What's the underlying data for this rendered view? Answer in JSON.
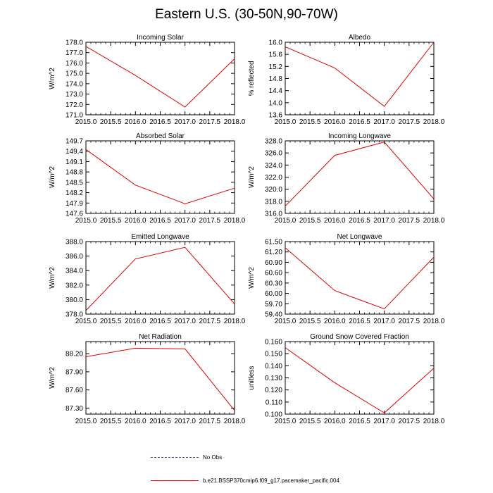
{
  "figure": {
    "title": "Eastern U.S. (30-50N,90-70W)"
  },
  "legend": {
    "obs_label": "No Obs",
    "model_label": "b.e21.BSSP370cmip6.f09_g17.pacemaker_pacific.004",
    "obs_color": "#4a4a9a",
    "model_color": "#e00000"
  },
  "chart_data": [
    {
      "type": "line",
      "title": "Incoming Solar",
      "ylabel": "W/m^2",
      "x": [
        2015,
        2016,
        2017,
        2018
      ],
      "values": [
        177.6,
        174.8,
        171.75,
        176.4
      ],
      "ylim": [
        171.0,
        178.0
      ],
      "yticks": [
        "171.0",
        "172.0",
        "173.0",
        "174.0",
        "175.0",
        "176.0",
        "177.0",
        "178.0"
      ],
      "xlim": [
        2015,
        2018
      ],
      "xticks": [
        "2015.0",
        "2015.5",
        "2016.0",
        "2016.5",
        "2017.0",
        "2017.5",
        "2018.0"
      ]
    },
    {
      "type": "line",
      "title": "Albedo",
      "ylabel": "% reflected",
      "x": [
        2015,
        2016,
        2017,
        2018
      ],
      "values": [
        15.85,
        15.15,
        13.88,
        16.0
      ],
      "ylim": [
        13.6,
        16.0
      ],
      "yticks": [
        "13.6",
        "14.0",
        "14.4",
        "14.8",
        "15.2",
        "15.6",
        "16.0"
      ],
      "xlim": [
        2015,
        2018
      ],
      "xticks": [
        "2015.0",
        "2015.5",
        "2016.0",
        "2016.5",
        "2017.0",
        "2017.5",
        "2018.0"
      ]
    },
    {
      "type": "line",
      "title": "Absorbed Solar",
      "ylabel": "W/m^2",
      "x": [
        2015,
        2016,
        2017,
        2018
      ],
      "values": [
        149.45,
        148.42,
        147.88,
        148.33
      ],
      "ylim": [
        147.6,
        149.7
      ],
      "yticks": [
        "147.6",
        "147.9",
        "148.2",
        "148.5",
        "148.8",
        "149.1",
        "149.4",
        "149.7"
      ],
      "xlim": [
        2015,
        2018
      ],
      "xticks": [
        "2015.0",
        "2015.5",
        "2016.0",
        "2016.5",
        "2017.0",
        "2017.5",
        "2018.0"
      ]
    },
    {
      "type": "line",
      "title": "Incoming Longwave",
      "ylabel": "W/m^2",
      "x": [
        2015,
        2016,
        2017,
        2018
      ],
      "values": [
        317.2,
        325.6,
        327.8,
        318.4
      ],
      "ylim": [
        316.0,
        328.0
      ],
      "yticks": [
        "316.0",
        "318.0",
        "320.0",
        "322.0",
        "324.0",
        "326.0",
        "328.0"
      ],
      "xlim": [
        2015,
        2018
      ],
      "xticks": [
        "2015.0",
        "2015.5",
        "2016.0",
        "2016.5",
        "2017.0",
        "2017.5",
        "2018.0"
      ]
    },
    {
      "type": "line",
      "title": "Emitted Longwave",
      "ylabel": "W/m^2",
      "x": [
        2015,
        2016,
        2017,
        2018
      ],
      "values": [
        378.5,
        385.6,
        387.2,
        379.4
      ],
      "ylim": [
        378.0,
        388.0
      ],
      "yticks": [
        "378.0",
        "380.0",
        "382.0",
        "384.0",
        "386.0",
        "388.0"
      ],
      "xlim": [
        2015,
        2018
      ],
      "xticks": [
        "2015.0",
        "2015.5",
        "2016.0",
        "2016.5",
        "2017.0",
        "2017.5",
        "2018.0"
      ]
    },
    {
      "type": "line",
      "title": "Net Longwave",
      "ylabel": "W/m^2",
      "x": [
        2015,
        2016,
        2017,
        2018
      ],
      "values": [
        61.32,
        60.08,
        59.55,
        61.05
      ],
      "ylim": [
        59.4,
        61.5
      ],
      "yticks": [
        "59.40",
        "59.70",
        "60.00",
        "60.30",
        "60.60",
        "60.90",
        "61.20",
        "61.50"
      ],
      "xlim": [
        2015,
        2018
      ],
      "xticks": [
        "2015.0",
        "2015.5",
        "2016.0",
        "2016.5",
        "2017.0",
        "2017.5",
        "2018.0"
      ]
    },
    {
      "type": "line",
      "title": "Net Radiation",
      "ylabel": "W/m^2",
      "x": [
        2015,
        2016,
        2017,
        2018
      ],
      "values": [
        88.15,
        88.29,
        88.28,
        87.26
      ],
      "ylim": [
        87.2,
        88.4
      ],
      "yticks": [
        "87.30",
        "87.60",
        "87.90",
        "88.20"
      ],
      "xlim": [
        2015,
        2018
      ],
      "xticks": [
        "2015.0",
        "2015.5",
        "2016.0",
        "2016.5",
        "2017.0",
        "2017.5",
        "2018.0"
      ]
    },
    {
      "type": "line",
      "title": "Ground Snow Covered Fraction",
      "ylabel": "unitless",
      "x": [
        2015,
        2016,
        2017,
        2018
      ],
      "values": [
        0.155,
        0.126,
        0.101,
        0.138
      ],
      "ylim": [
        0.1,
        0.16
      ],
      "yticks": [
        "0.100",
        "0.110",
        "0.120",
        "0.130",
        "0.140",
        "0.150",
        "0.160"
      ],
      "xlim": [
        2015,
        2018
      ],
      "xticks": [
        "2015.0",
        "2015.5",
        "2016.0",
        "2016.5",
        "2017.0",
        "2017.5",
        "2018.0"
      ]
    }
  ]
}
